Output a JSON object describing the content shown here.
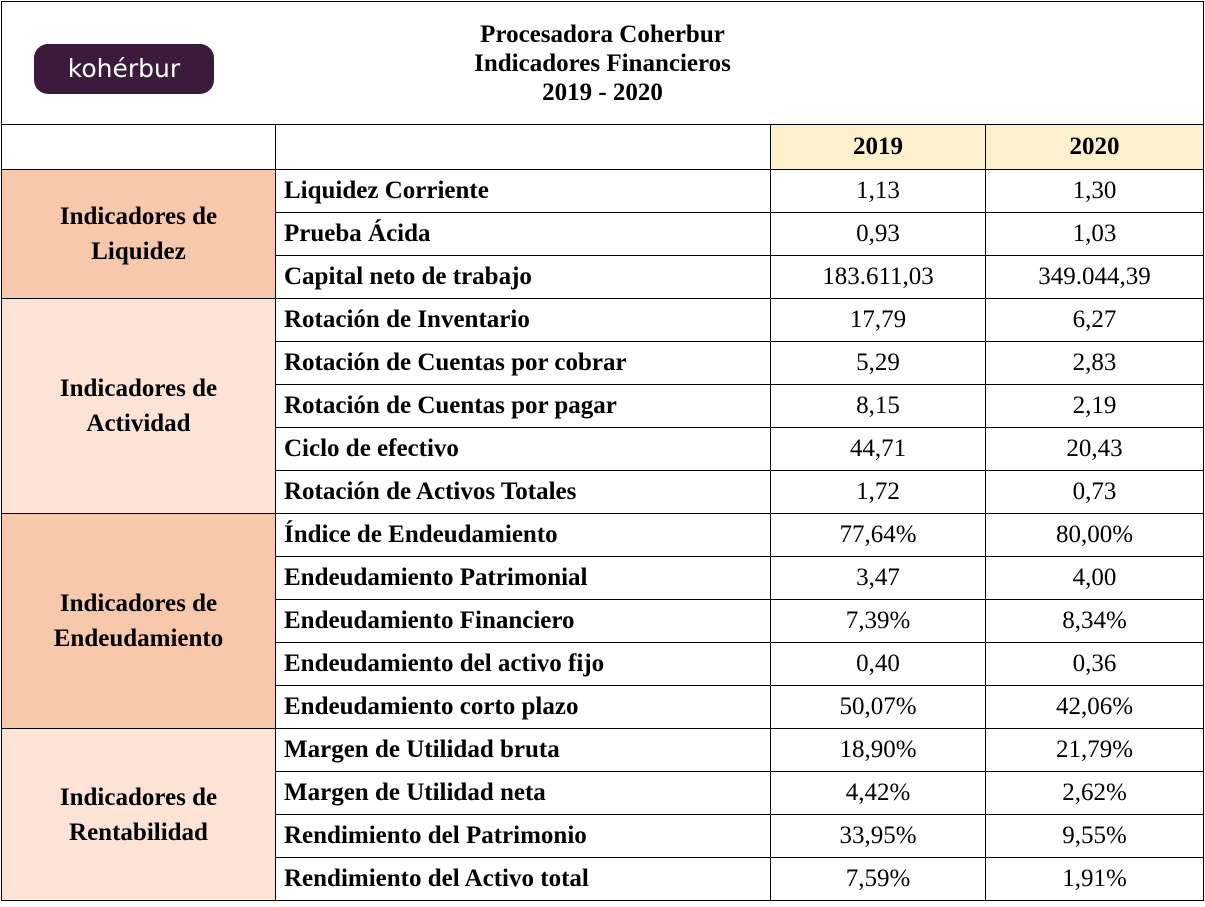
{
  "header": {
    "logo": "kohérbur",
    "title_lines": [
      "Procesadora Coherbur",
      "Indicadores Financieros",
      "2019 - 2020"
    ]
  },
  "table": {
    "columns": [
      "2019",
      "2020"
    ],
    "groups": [
      {
        "label": "Indicadores de Liquidez",
        "rows": [
          [
            "Liquidez Corriente",
            "1,13",
            "1,30"
          ],
          [
            "Prueba Ácida",
            "0,93",
            "1,03"
          ],
          [
            "Capital neto de trabajo",
            "183.611,03",
            "349.044,39"
          ]
        ]
      },
      {
        "label": "Indicadores de Actividad",
        "rows": [
          [
            "Rotación de Inventario",
            "17,79",
            "6,27"
          ],
          [
            "Rotación de Cuentas por cobrar",
            "5,29",
            "2,83"
          ],
          [
            "Rotación de Cuentas por pagar",
            "8,15",
            "2,19"
          ],
          [
            "Ciclo de efectivo",
            "44,71",
            "20,43"
          ],
          [
            "Rotación de Activos Totales",
            "1,72",
            "0,73"
          ]
        ]
      },
      {
        "label": "Indicadores de Endeudamiento",
        "rows": [
          [
            "Índice de Endeudamiento",
            "77,64%",
            "80,00%"
          ],
          [
            "Endeudamiento Patrimonial",
            "3,47",
            "4,00"
          ],
          [
            "Endeudamiento Financiero",
            "7,39%",
            "8,34%"
          ],
          [
            "Endeudamiento del activo fijo",
            "0,40",
            "0,36"
          ],
          [
            "Endeudamiento corto plazo",
            "50,07%",
            "42,06%"
          ]
        ]
      },
      {
        "label": "Indicadores de Rentabilidad",
        "rows": [
          [
            "Margen de Utilidad bruta",
            "18,90%",
            "21,79%"
          ],
          [
            "Margen de Utilidad neta",
            "4,42%",
            "2,62%"
          ],
          [
            "Rendimiento del Patrimonio",
            "33,95%",
            "9,55%"
          ],
          [
            "Rendimiento del Activo total",
            "7,59%",
            "1,91%"
          ]
        ]
      }
    ]
  }
}
